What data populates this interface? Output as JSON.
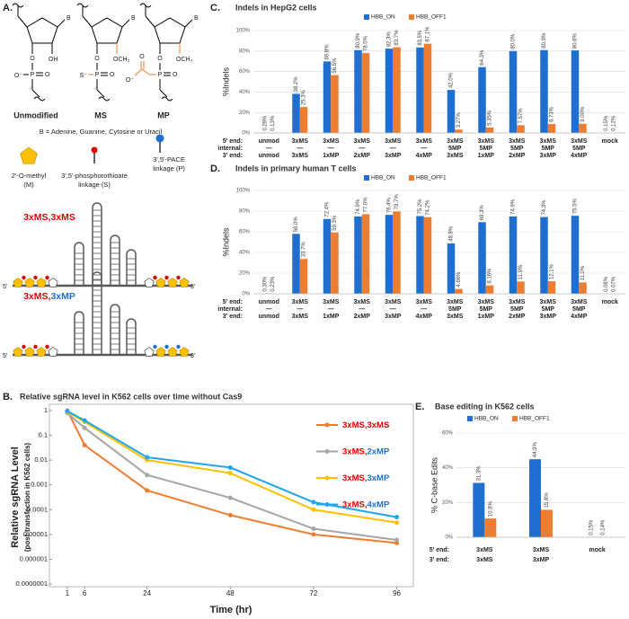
{
  "panel_a": {
    "panel": "A.",
    "structures": [
      {
        "label": "Unmodified"
      },
      {
        "label": "MS"
      },
      {
        "label": "MP"
      }
    ],
    "atoms": {
      "base": "B",
      "hydroxyl": "OH",
      "methoxy": "OCH₃",
      "oxygen": "O",
      "phosphorus": "P",
      "oxide": "O⁻",
      "thio": "S⁻"
    },
    "base_note": "B = Adenine, Guanine, Cytosine or Uracil",
    "legend": [
      {
        "line1": "2'-O-methyl",
        "line2": "(M)"
      },
      {
        "line1": "3',5'-phosphorothioate",
        "line2": "linkage (S)"
      },
      {
        "line1": "3',5'-PACE",
        "line2": "linkage (P)"
      }
    ],
    "constructs": [
      {
        "label": "3xMS,3xMS"
      },
      {
        "label": "3xMS,3xMP"
      }
    ],
    "end5": "5'",
    "end3": "3'"
  },
  "chart_data": [
    {
      "type": "bar",
      "panel": "C.",
      "title": "Indels in HepG2 cells",
      "ylabel": "%Indels",
      "ylim": [
        0,
        100
      ],
      "yticks": [
        {
          "value": 0,
          "label": "0%"
        },
        {
          "value": 20,
          "label": "20%"
        },
        {
          "value": 40,
          "label": "40%"
        },
        {
          "value": 60,
          "label": "60%"
        },
        {
          "value": 80,
          "label": "80%"
        },
        {
          "value": 100,
          "label": "100%"
        }
      ],
      "grid": true,
      "category_rows": [
        {
          "label": "5' end:",
          "values": [
            "unmod",
            "3xMS",
            "3xMS",
            "3xMS",
            "3xMS",
            "3xMS",
            "3xMS",
            "3xMS",
            "3xMS",
            "3xMS",
            "3xMS",
            "mock"
          ]
        },
        {
          "label": "internal:",
          "values": [
            "—",
            "—",
            "—",
            "—",
            "—",
            "—",
            "5MP",
            "5MP",
            "5MP",
            "5MP",
            "5MP",
            null
          ]
        },
        {
          "label": "3' end:",
          "values": [
            "unmod",
            "3xMS",
            "1xMP",
            "2xMP",
            "3xMP",
            "4xMP",
            "3xMS",
            "1xMP",
            "2xMP",
            "3xMP",
            "4xMP",
            null
          ]
        }
      ],
      "series": [
        {
          "name": "HBB_ON",
          "color": "#1f6fd1",
          "values": [
            0.28,
            38.2,
            69.8,
            80.9,
            82.3,
            83.5,
            42.0,
            64.3,
            80.0,
            80.9,
            80.6,
            0.15
          ],
          "value_labels": [
            "0.28%",
            "38.2%",
            "69.8%",
            "80.9%",
            "82.3%",
            "83.5%",
            "42.0%",
            "64.3%",
            "80.0%",
            "80.9%",
            "80.6%",
            "0.15%"
          ]
        },
        {
          "name": "HBB_OFF1",
          "color": "#ed7d31",
          "values": [
            0.13,
            25.3,
            56.5,
            78.0,
            83.7,
            87.1,
            3.27,
            5.35,
            7.57,
            8.73,
            9.0,
            0.12
          ],
          "value_labels": [
            "0.13%",
            "25.3%",
            "56.5%",
            "78.0%",
            "83.7%",
            "87.1%",
            "3.27%",
            "5.35%",
            "7.57%",
            "8.73%",
            "9.00%",
            "0.12%"
          ]
        }
      ]
    },
    {
      "type": "bar",
      "panel": "D.",
      "title": "Indels in primary human T cells",
      "ylabel": "%Indels",
      "ylim": [
        0,
        100
      ],
      "yticks": [
        {
          "value": 0,
          "label": "0%"
        },
        {
          "value": 20,
          "label": "20%"
        },
        {
          "value": 40,
          "label": "40%"
        },
        {
          "value": 60,
          "label": "60%"
        },
        {
          "value": 80,
          "label": "80%"
        },
        {
          "value": 100,
          "label": "100%"
        }
      ],
      "grid": true,
      "category_rows": [
        {
          "label": "5' end:",
          "values": [
            "unmod",
            "3xMS",
            "3xMS",
            "3xMS",
            "3xMS",
            "3xMS",
            "3xMS",
            "3xMS",
            "3xMS",
            "3xMS",
            "3xMS",
            "mock"
          ]
        },
        {
          "label": "internal:",
          "values": [
            "—",
            "—",
            "—",
            "—",
            "—",
            "—",
            "5MP",
            "5MP",
            "5MP",
            "5MP",
            "5MP",
            null
          ]
        },
        {
          "label": "3' end:",
          "values": [
            "unmod",
            "3xMS",
            "1xMP",
            "2xMP",
            "3xMP",
            "4xMP",
            "3xMS",
            "1xMP",
            "2xMP",
            "3xMP",
            "4xMP",
            null
          ]
        }
      ],
      "series": [
        {
          "name": "HBB_ON",
          "color": "#1f6fd1",
          "values": [
            0.3,
            58.0,
            72.4,
            74.9,
            76.4,
            75.2,
            48.8,
            69.3,
            74.9,
            74.3,
            75.5,
            0.08
          ],
          "value_labels": [
            "0.30%",
            "58.0%",
            "72.4%",
            "74.9%",
            "76.4%",
            "75.2%",
            "48.8%",
            "69.3%",
            "74.9%",
            "74.3%",
            "75.5%",
            "0.08%"
          ]
        },
        {
          "name": "HBB_OFF1",
          "color": "#ed7d31",
          "values": [
            0.23,
            33.7,
            59.3,
            77.0,
            79.7,
            74.2,
            4.66,
            8.16,
            11.9,
            12.1,
            11.0,
            0.07
          ],
          "value_labels": [
            "0.23%",
            "33.7%",
            "59.3%",
            "77.0%",
            "79.7%",
            "74.2%",
            "4.66%",
            "8.16%",
            "11.9%",
            "12.1%",
            "11.0%",
            "0.07%"
          ]
        }
      ]
    },
    {
      "type": "line",
      "panel": "B.",
      "title": "Relative sgRNA level in K562 cells over time without Cas9",
      "ylabel": "Relative  sgRNA  Level",
      "ylabel_sub": "(post-transfection in K562 cells)",
      "xlabel": "Time (hr)",
      "x": [
        1,
        6,
        24,
        48,
        72,
        96
      ],
      "xlim": [
        0,
        100
      ],
      "xticks": [
        1,
        6,
        24,
        48,
        72,
        96
      ],
      "log_y": true,
      "ylim": [
        1e-07,
        1
      ],
      "yticks": [
        1,
        0.1,
        0.01,
        0.001,
        0.0001,
        1e-05,
        1e-06,
        {
          "value": 1e-07,
          "label": "0.0000001"
        }
      ],
      "grid": false,
      "series": [
        {
          "name": "3xMS,3xMS",
          "color": "#ed7d31",
          "values": [
            1,
            0.04,
            0.0006,
            6e-05,
            1e-05,
            4.5e-06
          ]
        },
        {
          "name": "3xMS,2xMP",
          "color": "#a5a5a5",
          "values": [
            0.8,
            0.2,
            0.0025,
            0.0003,
            1.7e-05,
            6e-06
          ]
        },
        {
          "name": "3xMS,3xMP",
          "color": "#ffc000",
          "values": [
            0.9,
            0.35,
            0.01,
            0.003,
            0.0001,
            3e-05
          ]
        },
        {
          "name": "3xMS,4xMP",
          "color": "#1fa6f0",
          "values": [
            0.95,
            0.4,
            0.013,
            0.005,
            0.0002,
            5e-05
          ]
        }
      ]
    },
    {
      "type": "bar",
      "panel": "E.",
      "title": "Base editing in K562 cells",
      "ylabel": "% C-base Edits",
      "ylim": [
        0,
        60
      ],
      "yticks": [
        {
          "value": 0,
          "label": "0%"
        },
        {
          "value": 20,
          "label": "20%"
        },
        {
          "value": 40,
          "label": "40%"
        },
        {
          "value": 60,
          "label": "60%"
        }
      ],
      "grid": true,
      "category_rows": [
        {
          "label": "5' end:",
          "values": [
            "3xMS",
            "3xMS",
            "mock"
          ]
        },
        {
          "label": "3' end:",
          "values": [
            "3xMS",
            "3xMP",
            null
          ]
        }
      ],
      "series": [
        {
          "name": "HBB_ON",
          "color": "#1f6fd1",
          "values": [
            31.3,
            44.9,
            0.15
          ],
          "value_labels": [
            "31.3%",
            "44.9%",
            "0.15%"
          ]
        },
        {
          "name": "HBB_OFF1",
          "color": "#ed7d31",
          "values": [
            10.8,
            15.8,
            0.14
          ],
          "value_labels": [
            "10.8%",
            "15.8%",
            "0.14%"
          ]
        }
      ]
    }
  ]
}
